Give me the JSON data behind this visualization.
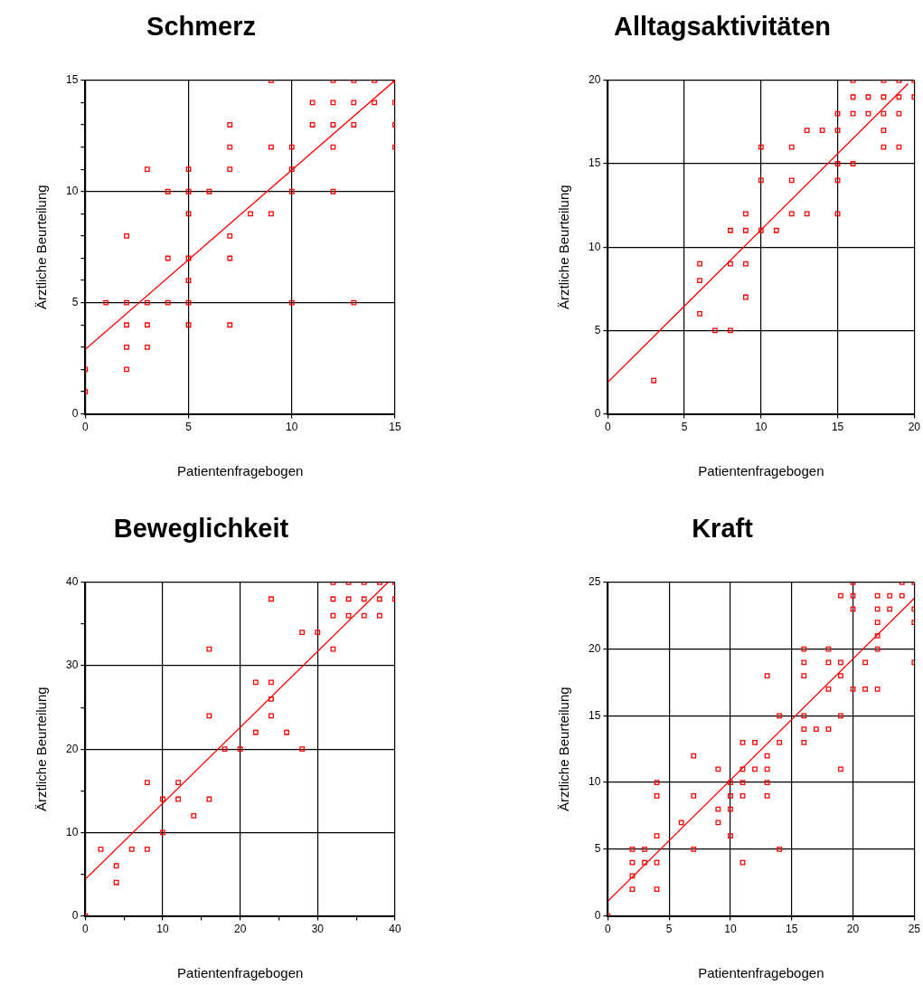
{
  "chart_data": [
    {
      "type": "scatter",
      "title": "Schmerz",
      "xlabel": "Patientenfragebogen",
      "ylabel": "Ärztliche Beurteilung",
      "xlim": [
        0,
        15
      ],
      "ylim": [
        0,
        15
      ],
      "xticks": [
        0,
        5,
        10,
        15
      ],
      "yticks": [
        0,
        {
          "value": 1,
          "label": null
        },
        {
          "value": 2,
          "label": null
        },
        {
          "value": 3,
          "label": null
        },
        {
          "value": 4,
          "label": null
        },
        5,
        {
          "value": 6,
          "label": null
        },
        {
          "value": 7,
          "label": null
        },
        {
          "value": 8,
          "label": null
        },
        {
          "value": 9,
          "label": null
        },
        10,
        {
          "value": 11,
          "label": null
        },
        {
          "value": 12,
          "label": null
        },
        {
          "value": 13,
          "label": null
        },
        {
          "value": 14,
          "label": null
        },
        15
      ],
      "grid": true,
      "series": [
        {
          "type": "scatter",
          "marker": "square",
          "color": "#ff0000",
          "x": [
            9,
            12,
            13,
            14,
            15,
            11,
            12,
            13,
            14,
            15,
            7,
            11,
            12,
            13,
            15,
            7,
            9,
            10,
            12,
            15,
            3,
            5,
            7,
            10,
            4,
            5,
            6,
            10,
            12,
            5,
            8,
            9,
            2,
            7,
            4,
            5,
            7,
            5,
            1,
            2,
            3,
            4,
            5,
            10,
            13,
            2,
            3,
            5,
            7,
            2,
            3,
            0,
            2,
            0
          ],
          "values": [
            15,
            15,
            15,
            15,
            15,
            14,
            14,
            14,
            14,
            14,
            13,
            13,
            13,
            13,
            13,
            12,
            12,
            12,
            12,
            12,
            11,
            11,
            11,
            11,
            10,
            10,
            10,
            10,
            10,
            9,
            9,
            9,
            8,
            8,
            7,
            7,
            7,
            6,
            5,
            5,
            5,
            5,
            5,
            5,
            5,
            4,
            4,
            4,
            4,
            3,
            3,
            2,
            2,
            1
          ]
        },
        {
          "type": "line",
          "marker": "none",
          "color": "#ff0000",
          "x": [
            0,
            15
          ],
          "values": [
            2.9,
            15
          ]
        }
      ]
    },
    {
      "type": "scatter",
      "title": "Alltagsaktivitäten",
      "xlabel": "Patientenfragebogen",
      "ylabel": "Ärztliche Beurteilung",
      "xlim": [
        0,
        20
      ],
      "ylim": [
        0,
        20
      ],
      "xticks": [
        0,
        5,
        10,
        15,
        20
      ],
      "yticks": [
        0,
        5,
        10,
        15,
        20
      ],
      "grid": true,
      "series": [
        {
          "type": "scatter",
          "marker": "square",
          "color": "#ff0000",
          "x": [
            16,
            18,
            19,
            20,
            16,
            17,
            18,
            19,
            20,
            15,
            16,
            17,
            18,
            19,
            13,
            14,
            15,
            18,
            10,
            12,
            18,
            19,
            15,
            16,
            10,
            12,
            15,
            9,
            12,
            13,
            15,
            8,
            9,
            10,
            11,
            6,
            8,
            9,
            6,
            9,
            6,
            7,
            8,
            3
          ],
          "values": [
            20,
            20,
            20,
            20,
            19,
            19,
            19,
            19,
            19,
            18,
            18,
            18,
            18,
            18,
            17,
            17,
            17,
            17,
            16,
            16,
            16,
            16,
            15,
            15,
            14,
            14,
            14,
            12,
            12,
            12,
            12,
            11,
            11,
            11,
            11,
            9,
            9,
            9,
            8,
            7,
            6,
            5,
            5,
            2
          ]
        },
        {
          "type": "line",
          "marker": "none",
          "color": "#ff0000",
          "x": [
            0,
            19.6
          ],
          "values": [
            1.9,
            19.8
          ]
        }
      ]
    },
    {
      "type": "scatter",
      "title": "Beweglichkeit",
      "xlabel": "Patientenfragebogen",
      "ylabel": "Ärztliche Beurteilung",
      "xlim": [
        0,
        40
      ],
      "ylim": [
        0,
        40
      ],
      "xticks": [
        0,
        {
          "value": 5,
          "label": null
        },
        10,
        {
          "value": 15,
          "label": null
        },
        20,
        {
          "value": 25,
          "label": null
        },
        30,
        {
          "value": 35,
          "label": null
        },
        40
      ],
      "yticks": [
        0,
        {
          "value": 5,
          "label": null
        },
        10,
        {
          "value": 15,
          "label": null
        },
        20,
        {
          "value": 25,
          "label": null
        },
        30,
        {
          "value": 35,
          "label": null
        },
        40
      ],
      "grid": true,
      "series": [
        {
          "type": "scatter",
          "marker": "square",
          "color": "#ff0000",
          "x": [
            32,
            34,
            36,
            38,
            40,
            24,
            32,
            34,
            36,
            38,
            40,
            32,
            34,
            36,
            38,
            28,
            30,
            16,
            32,
            22,
            24,
            24,
            16,
            24,
            22,
            26,
            18,
            20,
            28,
            8,
            12,
            10,
            12,
            16,
            14,
            10,
            2,
            6,
            8,
            4,
            4,
            0
          ],
          "values": [
            40,
            40,
            40,
            40,
            40,
            38,
            38,
            38,
            38,
            38,
            38,
            36,
            36,
            36,
            36,
            34,
            34,
            32,
            32,
            28,
            28,
            26,
            24,
            24,
            22,
            22,
            20,
            20,
            20,
            16,
            16,
            14,
            14,
            14,
            12,
            10,
            8,
            8,
            8,
            6,
            4,
            0
          ]
        },
        {
          "type": "line",
          "marker": "none",
          "color": "#ff0000",
          "x": [
            0,
            39.1
          ],
          "values": [
            4.4,
            40
          ]
        }
      ]
    },
    {
      "type": "scatter",
      "title": "Kraft",
      "xlabel": "Patientenfragebogen",
      "ylabel": "Ärztliche Beurteilung",
      "xlim": [
        0,
        25
      ],
      "ylim": [
        0,
        25
      ],
      "xticks": [
        0,
        5,
        10,
        15,
        20,
        25
      ],
      "yticks": [
        0,
        5,
        10,
        15,
        20,
        25
      ],
      "grid": true,
      "series": [
        {
          "type": "scatter",
          "marker": "square",
          "color": "#ff0000",
          "x": [
            20,
            24,
            25,
            19,
            20,
            22,
            23,
            24,
            20,
            22,
            23,
            25,
            22,
            25,
            22,
            16,
            18,
            22,
            16,
            18,
            19,
            21,
            25,
            13,
            16,
            19,
            18,
            20,
            21,
            22,
            14,
            16,
            19,
            16,
            17,
            18,
            11,
            12,
            14,
            16,
            7,
            13,
            9,
            11,
            12,
            13,
            19,
            4,
            10,
            11,
            13,
            4,
            7,
            10,
            11,
            13,
            9,
            10,
            6,
            9,
            4,
            10,
            2,
            3,
            7,
            14,
            2,
            3,
            4,
            11,
            2,
            2,
            4,
            0
          ],
          "values": [
            25,
            25,
            25,
            24,
            24,
            24,
            24,
            24,
            23,
            23,
            23,
            23,
            22,
            22,
            21,
            20,
            20,
            20,
            19,
            19,
            19,
            19,
            19,
            18,
            18,
            18,
            17,
            17,
            17,
            17,
            15,
            15,
            15,
            14,
            14,
            14,
            13,
            13,
            13,
            13,
            12,
            12,
            11,
            11,
            11,
            11,
            11,
            10,
            10,
            10,
            10,
            9,
            9,
            9,
            9,
            9,
            8,
            8,
            7,
            7,
            6,
            6,
            5,
            5,
            5,
            5,
            4,
            4,
            4,
            4,
            3,
            2,
            2,
            0
          ]
        },
        {
          "type": "line",
          "marker": "none",
          "color": "#ff0000",
          "x": [
            0,
            25
          ],
          "values": [
            1.1,
            23.8
          ]
        }
      ]
    }
  ]
}
